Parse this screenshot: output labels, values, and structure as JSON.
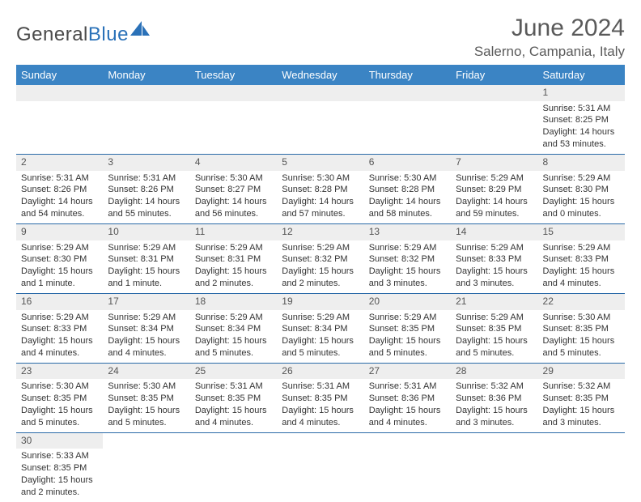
{
  "brand": {
    "word1": "General",
    "word2": "Blue"
  },
  "title": "June 2024",
  "location": "Salerno, Campania, Italy",
  "colors": {
    "header_bg": "#3b84c4",
    "header_text": "#ffffff",
    "row_divider": "#2a6aa8",
    "daynum_bg": "#eeeeee",
    "text": "#333333",
    "title_text": "#5a5a5a",
    "brand_grey": "#4a4a4a",
    "brand_blue": "#2a71b8"
  },
  "typography": {
    "title_fontsize": 30,
    "location_fontsize": 17,
    "header_fontsize": 13,
    "daynum_fontsize": 12,
    "body_fontsize": 11
  },
  "weekdays": [
    "Sunday",
    "Monday",
    "Tuesday",
    "Wednesday",
    "Thursday",
    "Friday",
    "Saturday"
  ],
  "weeks": [
    [
      null,
      null,
      null,
      null,
      null,
      null,
      {
        "n": "1",
        "sr": "Sunrise: 5:31 AM",
        "ss": "Sunset: 8:25 PM",
        "dl": "Daylight: 14 hours and 53 minutes."
      }
    ],
    [
      {
        "n": "2",
        "sr": "Sunrise: 5:31 AM",
        "ss": "Sunset: 8:26 PM",
        "dl": "Daylight: 14 hours and 54 minutes."
      },
      {
        "n": "3",
        "sr": "Sunrise: 5:31 AM",
        "ss": "Sunset: 8:26 PM",
        "dl": "Daylight: 14 hours and 55 minutes."
      },
      {
        "n": "4",
        "sr": "Sunrise: 5:30 AM",
        "ss": "Sunset: 8:27 PM",
        "dl": "Daylight: 14 hours and 56 minutes."
      },
      {
        "n": "5",
        "sr": "Sunrise: 5:30 AM",
        "ss": "Sunset: 8:28 PM",
        "dl": "Daylight: 14 hours and 57 minutes."
      },
      {
        "n": "6",
        "sr": "Sunrise: 5:30 AM",
        "ss": "Sunset: 8:28 PM",
        "dl": "Daylight: 14 hours and 58 minutes."
      },
      {
        "n": "7",
        "sr": "Sunrise: 5:29 AM",
        "ss": "Sunset: 8:29 PM",
        "dl": "Daylight: 14 hours and 59 minutes."
      },
      {
        "n": "8",
        "sr": "Sunrise: 5:29 AM",
        "ss": "Sunset: 8:30 PM",
        "dl": "Daylight: 15 hours and 0 minutes."
      }
    ],
    [
      {
        "n": "9",
        "sr": "Sunrise: 5:29 AM",
        "ss": "Sunset: 8:30 PM",
        "dl": "Daylight: 15 hours and 1 minute."
      },
      {
        "n": "10",
        "sr": "Sunrise: 5:29 AM",
        "ss": "Sunset: 8:31 PM",
        "dl": "Daylight: 15 hours and 1 minute."
      },
      {
        "n": "11",
        "sr": "Sunrise: 5:29 AM",
        "ss": "Sunset: 8:31 PM",
        "dl": "Daylight: 15 hours and 2 minutes."
      },
      {
        "n": "12",
        "sr": "Sunrise: 5:29 AM",
        "ss": "Sunset: 8:32 PM",
        "dl": "Daylight: 15 hours and 2 minutes."
      },
      {
        "n": "13",
        "sr": "Sunrise: 5:29 AM",
        "ss": "Sunset: 8:32 PM",
        "dl": "Daylight: 15 hours and 3 minutes."
      },
      {
        "n": "14",
        "sr": "Sunrise: 5:29 AM",
        "ss": "Sunset: 8:33 PM",
        "dl": "Daylight: 15 hours and 3 minutes."
      },
      {
        "n": "15",
        "sr": "Sunrise: 5:29 AM",
        "ss": "Sunset: 8:33 PM",
        "dl": "Daylight: 15 hours and 4 minutes."
      }
    ],
    [
      {
        "n": "16",
        "sr": "Sunrise: 5:29 AM",
        "ss": "Sunset: 8:33 PM",
        "dl": "Daylight: 15 hours and 4 minutes."
      },
      {
        "n": "17",
        "sr": "Sunrise: 5:29 AM",
        "ss": "Sunset: 8:34 PM",
        "dl": "Daylight: 15 hours and 4 minutes."
      },
      {
        "n": "18",
        "sr": "Sunrise: 5:29 AM",
        "ss": "Sunset: 8:34 PM",
        "dl": "Daylight: 15 hours and 5 minutes."
      },
      {
        "n": "19",
        "sr": "Sunrise: 5:29 AM",
        "ss": "Sunset: 8:34 PM",
        "dl": "Daylight: 15 hours and 5 minutes."
      },
      {
        "n": "20",
        "sr": "Sunrise: 5:29 AM",
        "ss": "Sunset: 8:35 PM",
        "dl": "Daylight: 15 hours and 5 minutes."
      },
      {
        "n": "21",
        "sr": "Sunrise: 5:29 AM",
        "ss": "Sunset: 8:35 PM",
        "dl": "Daylight: 15 hours and 5 minutes."
      },
      {
        "n": "22",
        "sr": "Sunrise: 5:30 AM",
        "ss": "Sunset: 8:35 PM",
        "dl": "Daylight: 15 hours and 5 minutes."
      }
    ],
    [
      {
        "n": "23",
        "sr": "Sunrise: 5:30 AM",
        "ss": "Sunset: 8:35 PM",
        "dl": "Daylight: 15 hours and 5 minutes."
      },
      {
        "n": "24",
        "sr": "Sunrise: 5:30 AM",
        "ss": "Sunset: 8:35 PM",
        "dl": "Daylight: 15 hours and 5 minutes."
      },
      {
        "n": "25",
        "sr": "Sunrise: 5:31 AM",
        "ss": "Sunset: 8:35 PM",
        "dl": "Daylight: 15 hours and 4 minutes."
      },
      {
        "n": "26",
        "sr": "Sunrise: 5:31 AM",
        "ss": "Sunset: 8:35 PM",
        "dl": "Daylight: 15 hours and 4 minutes."
      },
      {
        "n": "27",
        "sr": "Sunrise: 5:31 AM",
        "ss": "Sunset: 8:36 PM",
        "dl": "Daylight: 15 hours and 4 minutes."
      },
      {
        "n": "28",
        "sr": "Sunrise: 5:32 AM",
        "ss": "Sunset: 8:36 PM",
        "dl": "Daylight: 15 hours and 3 minutes."
      },
      {
        "n": "29",
        "sr": "Sunrise: 5:32 AM",
        "ss": "Sunset: 8:35 PM",
        "dl": "Daylight: 15 hours and 3 minutes."
      }
    ],
    [
      {
        "n": "30",
        "sr": "Sunrise: 5:33 AM",
        "ss": "Sunset: 8:35 PM",
        "dl": "Daylight: 15 hours and 2 minutes."
      },
      null,
      null,
      null,
      null,
      null,
      null
    ]
  ]
}
